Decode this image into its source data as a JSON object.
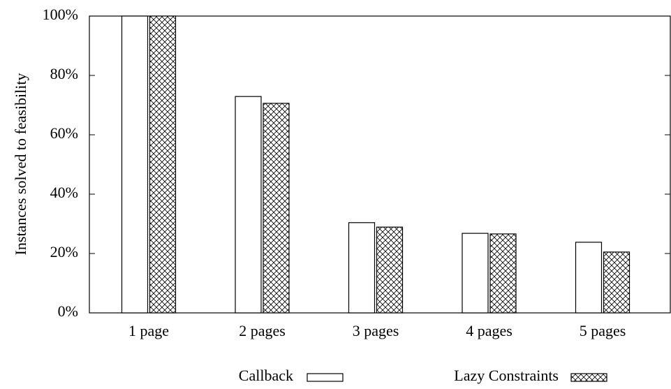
{
  "chart_data": {
    "type": "bar",
    "ylabel": "Instances solved to feasibility",
    "categories": [
      "1 page",
      "2 pages",
      "3 pages",
      "4 pages",
      "5 pages"
    ],
    "series": [
      {
        "name": "Callback",
        "color": "#ffffff",
        "values": [
          100,
          72.9,
          30.4,
          26.8,
          23.8
        ]
      },
      {
        "name": "Lazy Constraints",
        "color": "crosshatch",
        "values": [
          100,
          70.6,
          28.9,
          26.6,
          20.5
        ]
      }
    ],
    "ylim": [
      0,
      100
    ],
    "yticks": [
      {
        "value": 0,
        "label": "0%"
      },
      {
        "value": 20,
        "label": "20%"
      },
      {
        "value": 40,
        "label": "40%"
      },
      {
        "value": 60,
        "label": "60%"
      },
      {
        "value": 80,
        "label": "80%"
      },
      {
        "value": 100,
        "label": "100%"
      }
    ],
    "legend": "bottom"
  }
}
